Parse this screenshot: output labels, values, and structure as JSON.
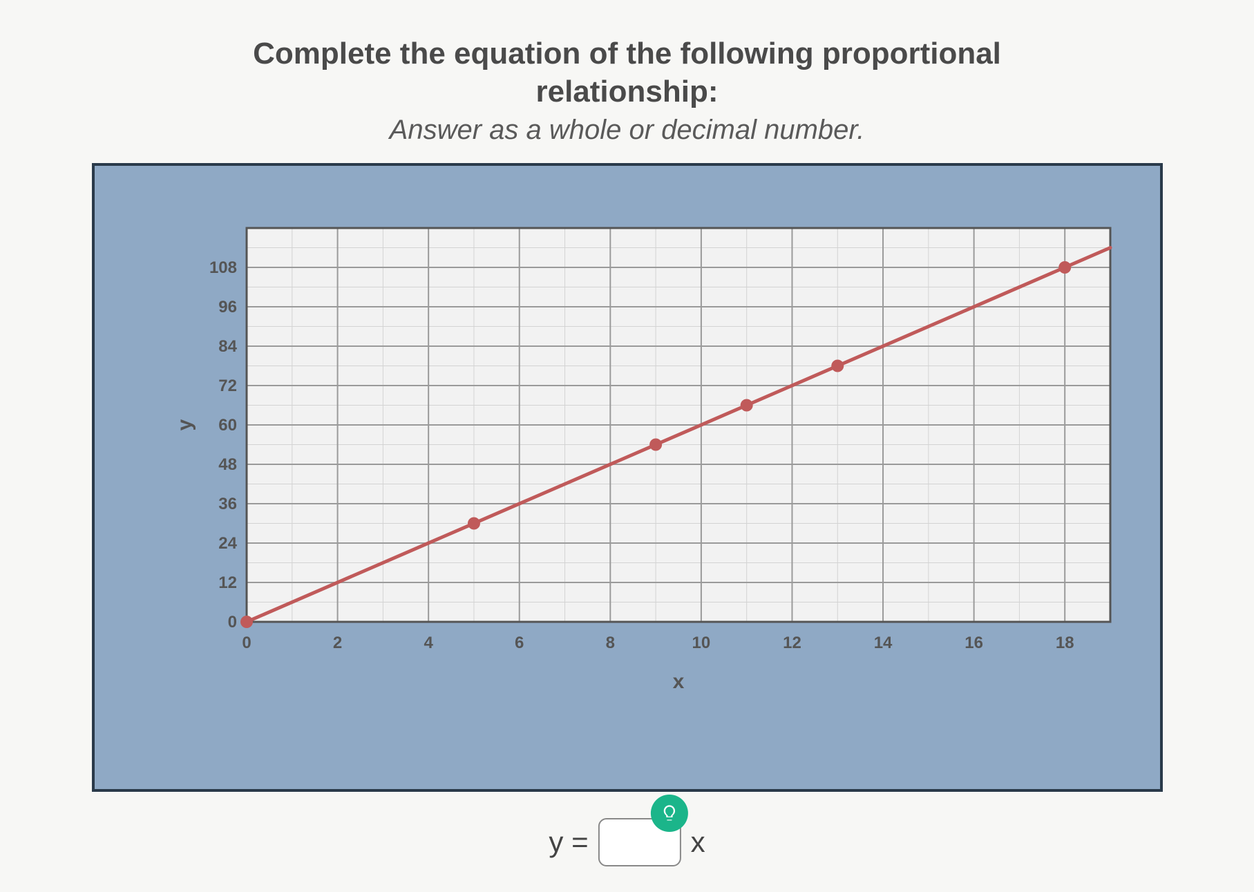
{
  "question": {
    "line1": "Complete the equation of the following proportional",
    "line2": "relationship:",
    "sub": "Answer as a whole or decimal number."
  },
  "chart": {
    "type": "line",
    "xlabel": "x",
    "ylabel": "y",
    "x_ticks": [
      0,
      2,
      4,
      6,
      8,
      10,
      12,
      14,
      16,
      18
    ],
    "y_ticks": [
      0,
      12,
      24,
      36,
      48,
      60,
      72,
      84,
      96,
      108
    ],
    "xlim": [
      0,
      18
    ],
    "ylim": [
      0,
      120
    ],
    "x_minor_step": 1,
    "y_minor_step": 6,
    "plot_bg": "#f2f2f2",
    "panel_bg": "#8fa9c5",
    "panel_border": "#2a3a4a",
    "grid_major_color": "#9a9a9a",
    "grid_minor_color": "#d3d3d3",
    "axis_color": "#555555",
    "line_color": "#c05a5a",
    "point_color": "#c05a5a",
    "line_width": 5,
    "point_radius": 9,
    "tick_fontsize": 24,
    "label_fontsize": 30,
    "tick_color": "#555555",
    "data_points": [
      {
        "x": 0,
        "y": 0
      },
      {
        "x": 5,
        "y": 30
      },
      {
        "x": 9,
        "y": 54
      },
      {
        "x": 11,
        "y": 66
      },
      {
        "x": 13,
        "y": 78
      },
      {
        "x": 18,
        "y": 108
      }
    ],
    "line_endpoints": [
      {
        "x": 0,
        "y": 0
      },
      {
        "x": 19,
        "y": 114
      }
    ]
  },
  "equation": {
    "prefix": "y =",
    "suffix": "x",
    "value": "",
    "placeholder": ""
  },
  "hint_icon": "lightbulb-icon",
  "colors": {
    "question_text": "#4a4a4a",
    "question_sub": "#5a5a5a",
    "hint_bg": "#1bb58a",
    "hint_icon_color": "#ffffff",
    "input_border": "#888888"
  }
}
